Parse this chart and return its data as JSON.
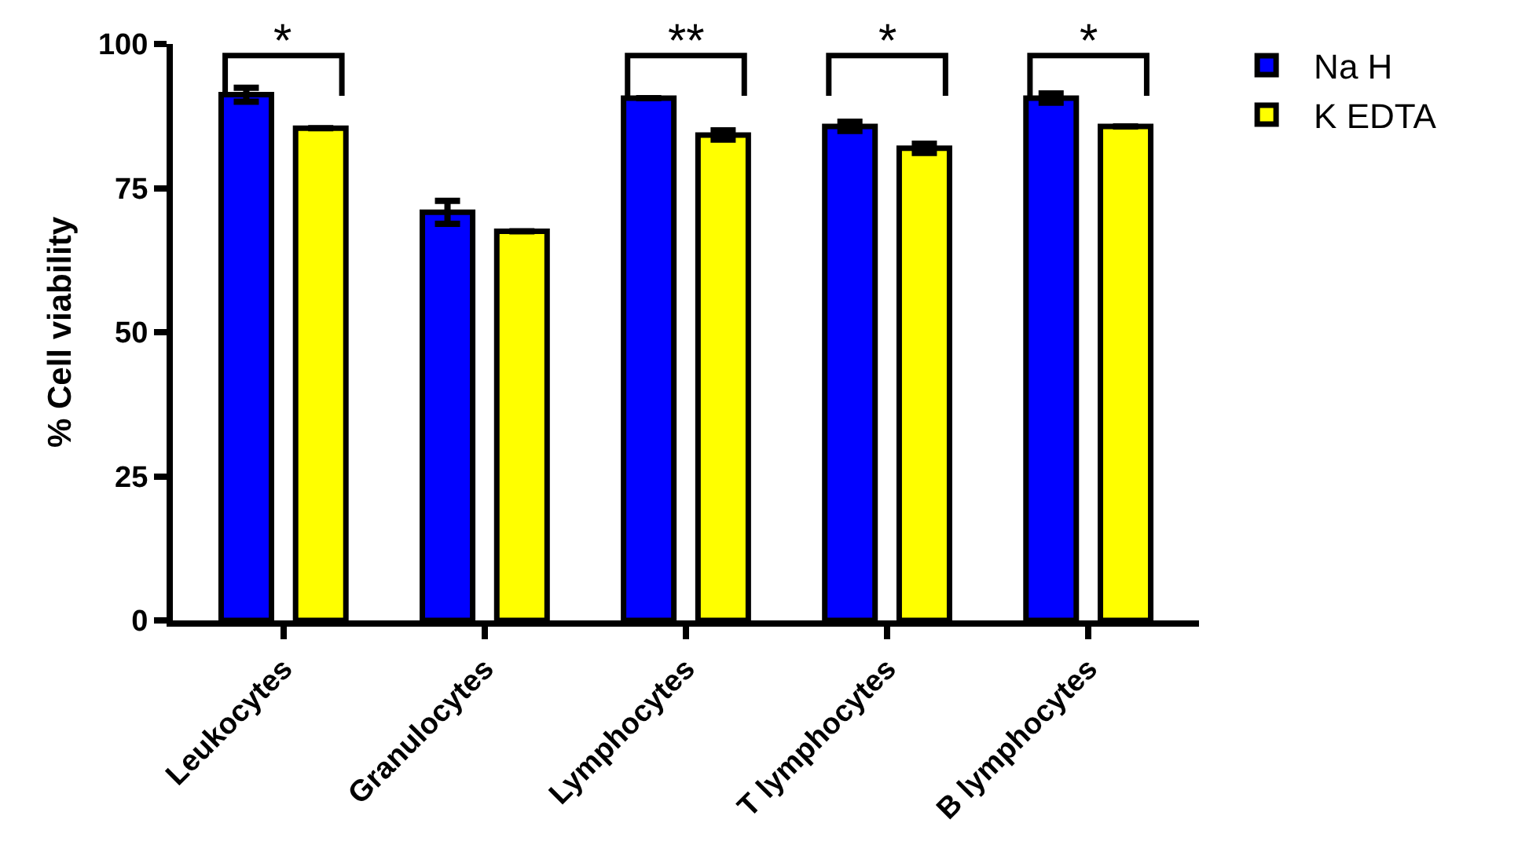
{
  "chart_data": {
    "type": "bar",
    "ylabel": "% Cell viability",
    "categories": [
      "Leukocytes",
      "Granulocytes",
      "Lymphocytes",
      "T lymphocytes",
      "B lymphocytes"
    ],
    "series": [
      {
        "name": "Na H",
        "color": "#0000ff",
        "values": [
          91.2,
          70.8,
          90.6,
          85.7,
          90.6
        ],
        "errors": [
          1.2,
          2,
          null,
          0.8,
          0.8
        ]
      },
      {
        "name": "K EDTA",
        "color": "#ffff00",
        "values": [
          85.4,
          67.5,
          84.2,
          81.9,
          85.7
        ],
        "errors": [
          null,
          null,
          0.8,
          0.8,
          null
        ]
      }
    ],
    "ylim": [
      0,
      100
    ],
    "yticks": [
      0,
      25,
      50,
      75,
      100
    ],
    "grid": false,
    "legend": "top right",
    "annotations": [
      "*",
      "**",
      "*",
      "*"
    ]
  }
}
